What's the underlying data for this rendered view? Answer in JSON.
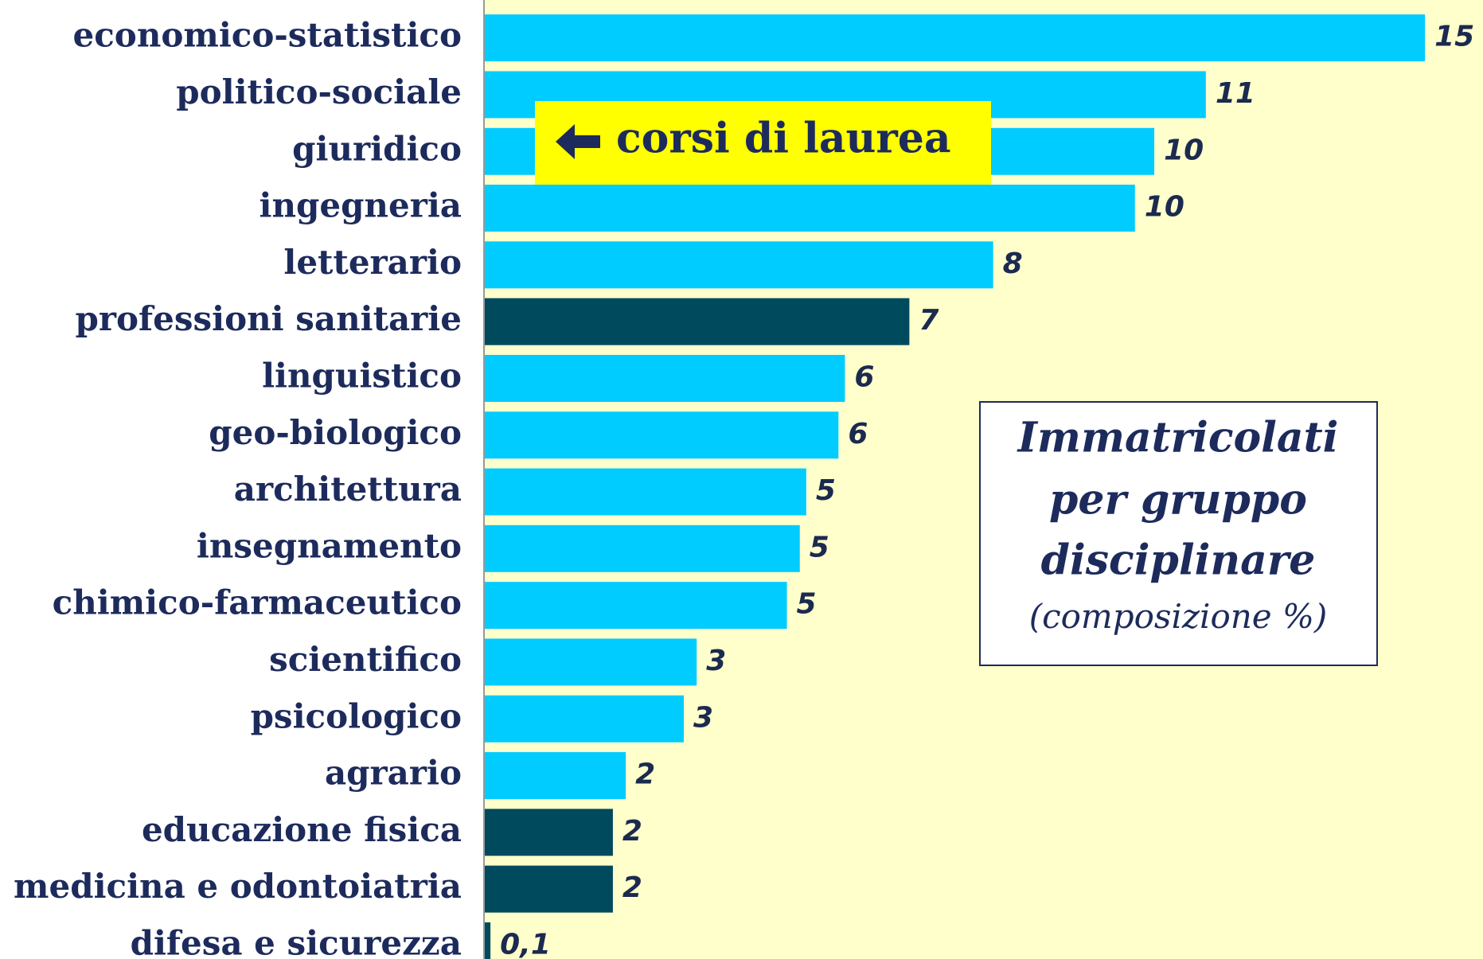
{
  "chart_data": {
    "type": "barh",
    "categories": [
      "economico-statistico",
      "politico-sociale",
      "giuridico",
      "ingegneria",
      "letterario",
      "professioni sanitarie",
      "linguistico",
      "geo-biologico",
      "architettura",
      "insegnamento",
      "chimico-farmaceutico",
      "scientifico",
      "psicologico",
      "agrario",
      "educazione fisica",
      "medicina e odontoiatria",
      "difesa e sicurezza"
    ],
    "values": [
      14.6,
      11.2,
      10.4,
      10.1,
      7.9,
      6.6,
      5.6,
      5.5,
      5.0,
      4.9,
      4.7,
      3.3,
      3.1,
      2.2,
      2.0,
      2.0,
      0.1
    ],
    "value_labels": [
      "15",
      "11",
      "10",
      "10",
      "8",
      "7",
      "6",
      "6",
      "5",
      "5",
      "5",
      "3",
      "3",
      "2",
      "2",
      "2",
      "0,1"
    ],
    "colors": [
      "#00ccff",
      "#00ccff",
      "#00ccff",
      "#00ccff",
      "#00ccff",
      "#004a5e",
      "#00ccff",
      "#00ccff",
      "#00ccff",
      "#00ccff",
      "#00ccff",
      "#00ccff",
      "#00ccff",
      "#00ccff",
      "#004a5e",
      "#004a5e",
      "#004a5e"
    ],
    "xlim": [
      0,
      15.5
    ],
    "annotations": [
      "corsi di laurea"
    ],
    "inset_title": [
      "Immatricolati",
      "per gruppo",
      "disciplinare"
    ],
    "inset_subtitle": "(composizione %)"
  }
}
